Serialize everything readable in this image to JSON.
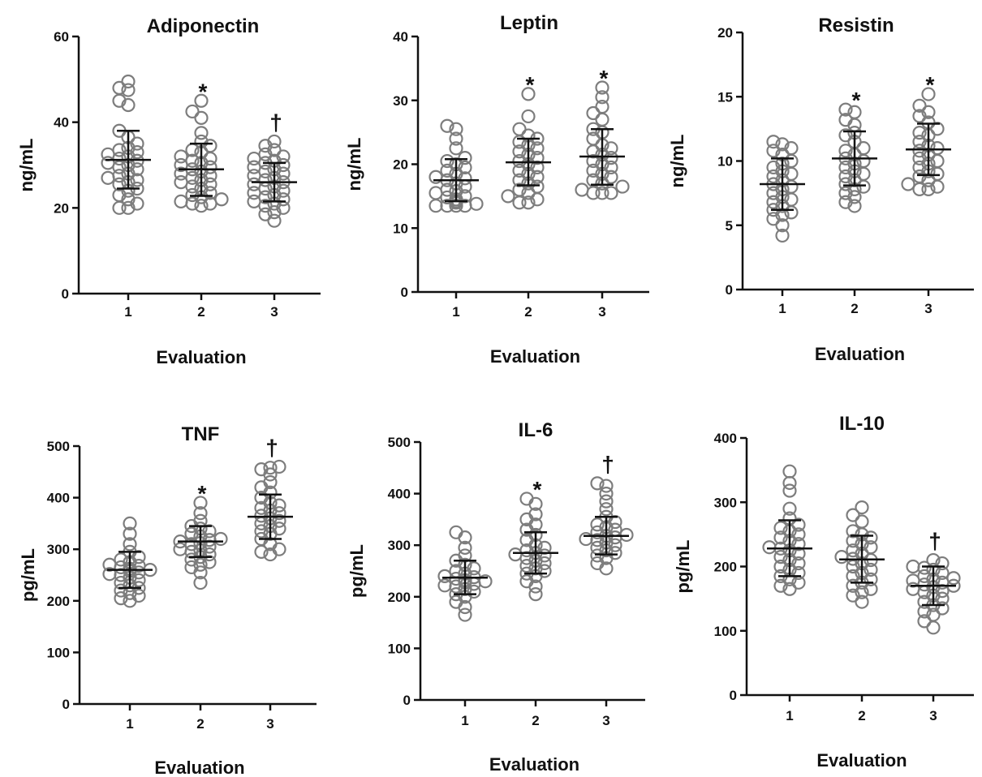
{
  "colors": {
    "axis": "#111111",
    "marker": "#7d7d7d",
    "bar": "#111111"
  },
  "chart_data": [
    {
      "type": "scatter",
      "title": "Adiponectin",
      "xlabel": "Evaluation",
      "ylabel": "ng/mL",
      "categories": [
        "1",
        "2",
        "3"
      ],
      "ylim": [
        0,
        60
      ],
      "yticks": [
        "0",
        "20",
        "40",
        "60"
      ],
      "summary": [
        {
          "category": "1",
          "mean": 31.2,
          "sd_low": 24.5,
          "sd_high": 38.0,
          "annotation": ""
        },
        {
          "category": "2",
          "mean": 29.0,
          "sd_low": 22.8,
          "sd_high": 35.0,
          "annotation": "*"
        },
        {
          "category": "3",
          "mean": 26.0,
          "sd_low": 21.5,
          "sd_high": 30.5,
          "annotation": "†"
        }
      ],
      "points": [
        [
          49.5,
          48.0,
          47.5,
          45.0,
          44.0,
          38.0,
          36.5,
          35.0,
          34.0,
          33.5,
          33.0,
          32.5,
          32.0,
          31.5,
          31.0,
          30.5,
          30.0,
          29.5,
          29.0,
          28.0,
          27.5,
          27.0,
          26.5,
          26.0,
          25.5,
          24.5,
          24.0,
          23.0,
          22.0,
          21.0,
          20.0,
          20.0
        ],
        [
          45.0,
          42.5,
          41.0,
          37.5,
          35.5,
          34.5,
          33.5,
          33.0,
          32.0,
          31.5,
          31.0,
          30.5,
          30.0,
          29.5,
          29.0,
          28.5,
          28.0,
          27.5,
          27.0,
          26.5,
          26.0,
          25.5,
          25.0,
          24.5,
          23.5,
          23.0,
          22.5,
          22.0,
          21.5,
          21.0,
          21.0,
          20.5
        ],
        [
          35.5,
          34.5,
          33.5,
          32.5,
          32.0,
          31.5,
          31.0,
          30.5,
          30.0,
          29.5,
          29.0,
          28.5,
          28.0,
          27.5,
          27.0,
          26.5,
          26.0,
          25.5,
          25.0,
          24.5,
          24.0,
          23.5,
          23.0,
          22.5,
          22.0,
          21.5,
          21.0,
          20.5,
          20.0,
          19.0,
          18.5,
          17.0
        ]
      ]
    },
    {
      "type": "scatter",
      "title": "Leptin",
      "xlabel": "Evaluation",
      "ylabel": "ng/mL",
      "categories": [
        "1",
        "2",
        "3"
      ],
      "ylim": [
        0,
        40
      ],
      "yticks": [
        "0",
        "10",
        "20",
        "30",
        "40"
      ],
      "summary": [
        {
          "category": "1",
          "mean": 17.5,
          "sd_low": 14.2,
          "sd_high": 20.8,
          "annotation": ""
        },
        {
          "category": "2",
          "mean": 20.3,
          "sd_low": 16.7,
          "sd_high": 24.0,
          "annotation": "*"
        },
        {
          "category": "3",
          "mean": 21.2,
          "sd_low": 16.8,
          "sd_high": 25.5,
          "annotation": "*"
        }
      ],
      "points": [
        [
          26.0,
          25.5,
          24.0,
          22.5,
          21.0,
          20.5,
          20.0,
          19.5,
          19.0,
          18.5,
          18.0,
          17.8,
          17.5,
          17.0,
          16.5,
          16.0,
          15.8,
          15.5,
          15.0,
          14.8,
          14.5,
          14.2,
          14.0,
          13.8,
          13.5,
          13.5,
          13.5,
          13.5
        ],
        [
          31.0,
          27.5,
          25.5,
          24.5,
          24.0,
          23.5,
          23.0,
          22.5,
          22.0,
          21.5,
          21.0,
          20.5,
          20.0,
          19.5,
          19.0,
          18.5,
          18.0,
          17.5,
          17.0,
          16.5,
          16.0,
          15.5,
          15.0,
          14.5,
          14.0,
          14.0
        ],
        [
          32.0,
          30.5,
          29.0,
          28.0,
          27.0,
          25.5,
          25.0,
          24.0,
          23.0,
          22.5,
          22.0,
          21.5,
          21.0,
          20.5,
          20.0,
          19.5,
          19.0,
          18.5,
          18.0,
          17.5,
          17.0,
          16.5,
          16.0,
          15.5,
          15.5,
          15.5
        ]
      ]
    },
    {
      "type": "scatter",
      "title": "Resistin",
      "xlabel": "Evaluation",
      "ylabel": "ng/mL",
      "categories": [
        "1",
        "2",
        "3"
      ],
      "ylim": [
        0,
        20
      ],
      "yticks": [
        "0",
        "5",
        "10",
        "15",
        "20"
      ],
      "summary": [
        {
          "category": "1",
          "mean": 8.2,
          "sd_low": 6.2,
          "sd_high": 10.2,
          "annotation": ""
        },
        {
          "category": "2",
          "mean": 10.2,
          "sd_low": 8.1,
          "sd_high": 12.3,
          "annotation": "*"
        },
        {
          "category": "3",
          "mean": 10.9,
          "sd_low": 8.9,
          "sd_high": 12.9,
          "annotation": "*"
        }
      ],
      "points": [
        [
          11.5,
          11.3,
          11.0,
          10.8,
          10.5,
          10.0,
          9.8,
          9.5,
          9.2,
          9.0,
          8.8,
          8.5,
          8.2,
          8.0,
          7.8,
          7.5,
          7.2,
          7.0,
          6.8,
          6.5,
          6.2,
          6.0,
          5.8,
          5.5,
          5.0,
          4.2
        ],
        [
          14.0,
          13.8,
          13.2,
          12.8,
          12.2,
          12.0,
          11.5,
          11.0,
          10.8,
          10.5,
          10.2,
          10.0,
          9.8,
          9.5,
          9.2,
          9.0,
          8.8,
          8.5,
          8.2,
          8.0,
          7.8,
          7.5,
          7.2,
          6.8,
          6.5
        ],
        [
          15.2,
          14.3,
          13.8,
          13.5,
          13.0,
          12.5,
          12.2,
          12.0,
          11.5,
          11.2,
          11.0,
          10.8,
          10.5,
          10.2,
          10.0,
          9.8,
          9.5,
          9.2,
          9.0,
          8.8,
          8.5,
          8.2,
          8.0,
          7.8,
          7.8
        ]
      ]
    },
    {
      "type": "scatter",
      "title": "TNF",
      "xlabel": "Evaluation",
      "ylabel": "pg/mL",
      "categories": [
        "1",
        "2",
        "3"
      ],
      "ylim": [
        0,
        500
      ],
      "yticks": [
        "0",
        "100",
        "200",
        "300",
        "400",
        "500"
      ],
      "summary": [
        {
          "category": "1",
          "mean": 260,
          "sd_low": 225,
          "sd_high": 295,
          "annotation": ""
        },
        {
          "category": "2",
          "mean": 315,
          "sd_low": 285,
          "sd_high": 345,
          "annotation": "*"
        },
        {
          "category": "3",
          "mean": 363,
          "sd_low": 320,
          "sd_high": 406,
          "annotation": "†"
        }
      ],
      "points": [
        [
          350,
          330,
          310,
          295,
          285,
          280,
          275,
          270,
          268,
          265,
          262,
          260,
          258,
          255,
          252,
          250,
          245,
          240,
          235,
          230,
          225,
          220,
          215,
          210,
          205,
          200
        ],
        [
          390,
          370,
          355,
          345,
          340,
          335,
          330,
          325,
          320,
          318,
          315,
          312,
          310,
          305,
          300,
          298,
          295,
          290,
          285,
          280,
          275,
          270,
          265,
          255,
          235
        ],
        [
          460,
          458,
          455,
          445,
          430,
          420,
          410,
          400,
          390,
          385,
          380,
          375,
          370,
          365,
          360,
          355,
          350,
          345,
          340,
          335,
          330,
          320,
          310,
          300,
          295,
          290
        ]
      ]
    },
    {
      "type": "scatter",
      "title": "IL-6",
      "xlabel": "Evaluation",
      "ylabel": "pg/mL",
      "categories": [
        "1",
        "2",
        "3"
      ],
      "ylim": [
        0,
        500
      ],
      "yticks": [
        "0",
        "100",
        "200",
        "300",
        "400",
        "500"
      ],
      "summary": [
        {
          "category": "1",
          "mean": 237,
          "sd_low": 205,
          "sd_high": 270,
          "annotation": ""
        },
        {
          "category": "2",
          "mean": 285,
          "sd_low": 245,
          "sd_high": 325,
          "annotation": "*"
        },
        {
          "category": "3",
          "mean": 318,
          "sd_low": 282,
          "sd_high": 355,
          "annotation": "†"
        }
      ],
      "points": [
        [
          325,
          315,
          295,
          280,
          270,
          262,
          255,
          250,
          245,
          240,
          238,
          235,
          232,
          230,
          228,
          225,
          222,
          220,
          215,
          210,
          205,
          200,
          190,
          180,
          165
        ],
        [
          390,
          380,
          360,
          350,
          340,
          330,
          320,
          310,
          300,
          295,
          290,
          285,
          282,
          280,
          275,
          270,
          265,
          260,
          255,
          250,
          245,
          240,
          230,
          220,
          205
        ],
        [
          420,
          415,
          400,
          385,
          370,
          355,
          345,
          340,
          335,
          330,
          325,
          320,
          318,
          315,
          312,
          310,
          305,
          300,
          295,
          290,
          285,
          280,
          275,
          265,
          255
        ]
      ]
    },
    {
      "type": "scatter",
      "title": "IL-10",
      "xlabel": "Evaluation",
      "ylabel": "pg/mL",
      "categories": [
        "1",
        "2",
        "3"
      ],
      "ylim": [
        0,
        400
      ],
      "yticks": [
        "0",
        "100",
        "200",
        "300",
        "400"
      ],
      "summary": [
        {
          "category": "1",
          "mean": 228,
          "sd_low": 185,
          "sd_high": 272,
          "annotation": ""
        },
        {
          "category": "2",
          "mean": 211,
          "sd_low": 175,
          "sd_high": 248,
          "annotation": ""
        },
        {
          "category": "3",
          "mean": 170,
          "sd_low": 140,
          "sd_high": 200,
          "annotation": "†"
        }
      ],
      "points": [
        [
          348,
          330,
          318,
          290,
          275,
          265,
          260,
          255,
          250,
          245,
          240,
          235,
          230,
          228,
          225,
          220,
          215,
          210,
          205,
          200,
          195,
          190,
          185,
          180,
          175,
          170,
          165
        ],
        [
          292,
          280,
          270,
          255,
          250,
          245,
          240,
          235,
          230,
          225,
          220,
          215,
          212,
          210,
          205,
          200,
          195,
          190,
          185,
          180,
          175,
          170,
          165,
          160,
          155,
          145
        ],
        [
          210,
          205,
          200,
          198,
          195,
          190,
          185,
          182,
          180,
          178,
          175,
          172,
          170,
          168,
          165,
          162,
          160,
          155,
          150,
          145,
          140,
          135,
          130,
          125,
          115,
          105
        ]
      ]
    }
  ]
}
